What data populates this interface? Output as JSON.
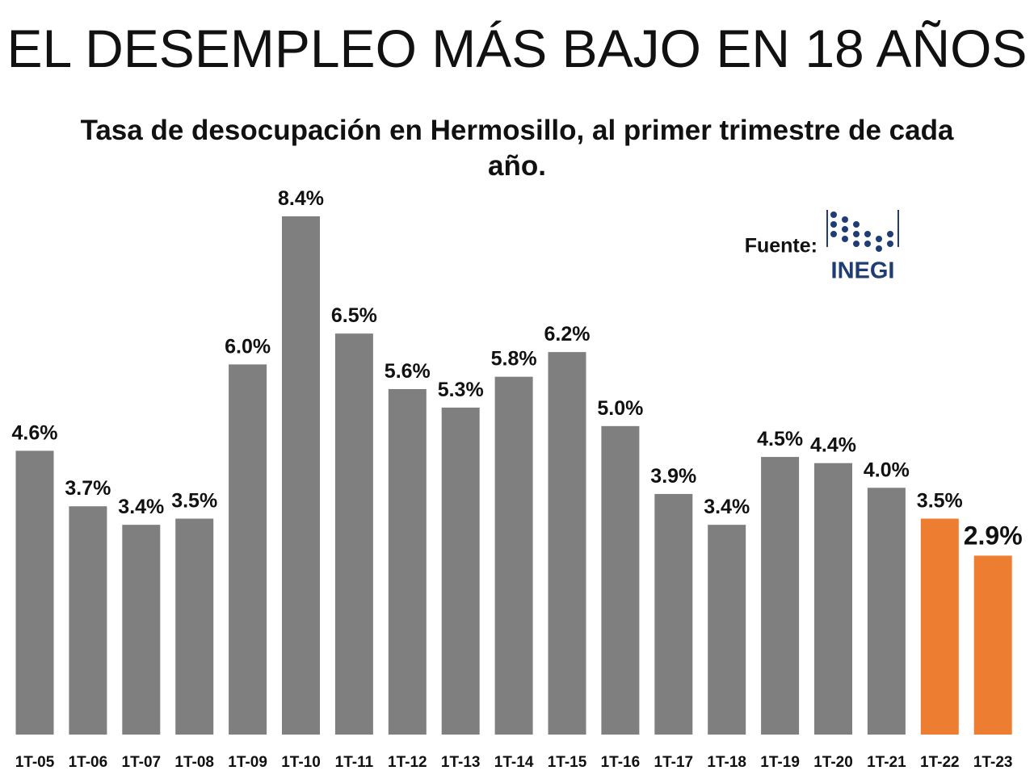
{
  "chart_data": {
    "type": "bar",
    "title": "EL DESEMPLEO MÁS BAJO EN 18 AÑOS",
    "subtitle": "Tasa de desocupación en Hermosillo, al primer trimestre de cada año.",
    "source_label": "Fuente:",
    "source_logo": "INEGI",
    "categories": [
      "1T-05",
      "1T-06",
      "1T-07",
      "1T-08",
      "1T-09",
      "1T-10",
      "1T-11",
      "1T-12",
      "1T-13",
      "1T-14",
      "1T-15",
      "1T-16",
      "1T-17",
      "1T-18",
      "1T-19",
      "1T-20",
      "1T-21",
      "1T-22",
      "1T-23"
    ],
    "values": [
      4.6,
      3.7,
      3.4,
      3.5,
      6.0,
      8.4,
      6.5,
      5.6,
      5.3,
      5.8,
      6.2,
      5.0,
      3.9,
      3.4,
      4.5,
      4.4,
      4.0,
      3.5,
      2.9
    ],
    "value_labels": [
      "4.6%",
      "3.7%",
      "3.4%",
      "3.5%",
      "6.0%",
      "8.4%",
      "6.5%",
      "5.6%",
      "5.3%",
      "5.8%",
      "6.2%",
      "5.0%",
      "3.9%",
      "3.4%",
      "4.5%",
      "4.4%",
      "4.0%",
      "3.5%",
      "2.9%"
    ],
    "colors": [
      "#7f7f7f",
      "#7f7f7f",
      "#7f7f7f",
      "#7f7f7f",
      "#7f7f7f",
      "#7f7f7f",
      "#7f7f7f",
      "#7f7f7f",
      "#7f7f7f",
      "#7f7f7f",
      "#7f7f7f",
      "#7f7f7f",
      "#7f7f7f",
      "#7f7f7f",
      "#7f7f7f",
      "#7f7f7f",
      "#7f7f7f",
      "#ed7d31",
      "#ed7d31"
    ]
  }
}
